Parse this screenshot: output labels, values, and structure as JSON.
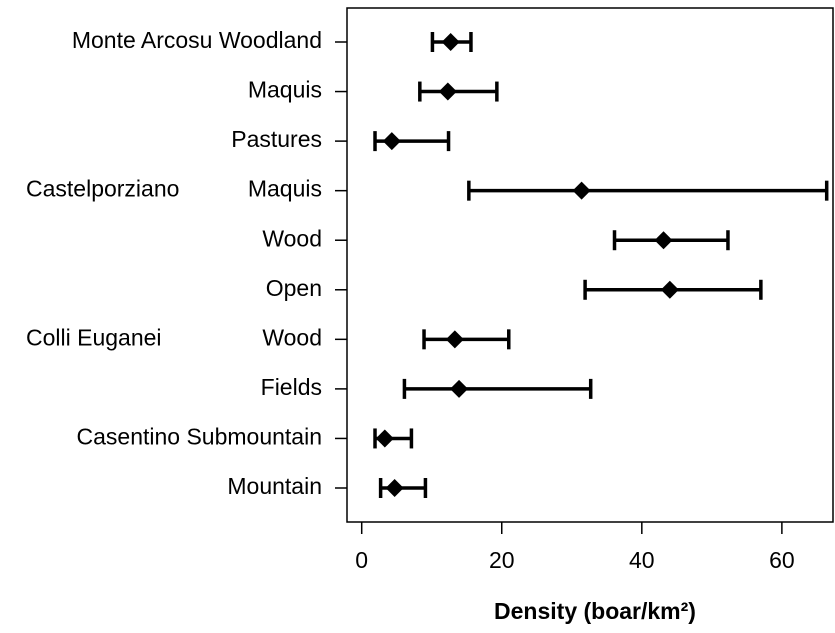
{
  "chart_data": {
    "type": "dot-interval",
    "x_label": "Density (boar/km²)",
    "categories": [
      "Monte Arcosu Woodland",
      "Maquis",
      "Pastures",
      "Maquis",
      "Wood",
      "Open",
      "Wood",
      "Fields",
      "Casentino Submountain",
      "Mountain"
    ],
    "group_labels": [
      {
        "text": "Castelporziano",
        "category": 3
      },
      {
        "text": "Colli Euganei",
        "category": 6
      }
    ],
    "values": [
      12.7,
      12.3,
      4.3,
      31.4,
      43.1,
      44.0,
      13.3,
      13.9,
      3.3,
      4.7
    ],
    "low": [
      10.1,
      8.3,
      1.9,
      15.3,
      36.1,
      31.9,
      8.9,
      6.1,
      1.9,
      2.7
    ],
    "high": [
      15.6,
      19.3,
      12.4,
      66.4,
      52.3,
      57.0,
      21.0,
      32.7,
      7.1,
      9.1
    ],
    "color": "#000000",
    "xlim": [
      -2.1,
      67.3
    ],
    "xticks": [
      0,
      20,
      40,
      60
    ]
  }
}
